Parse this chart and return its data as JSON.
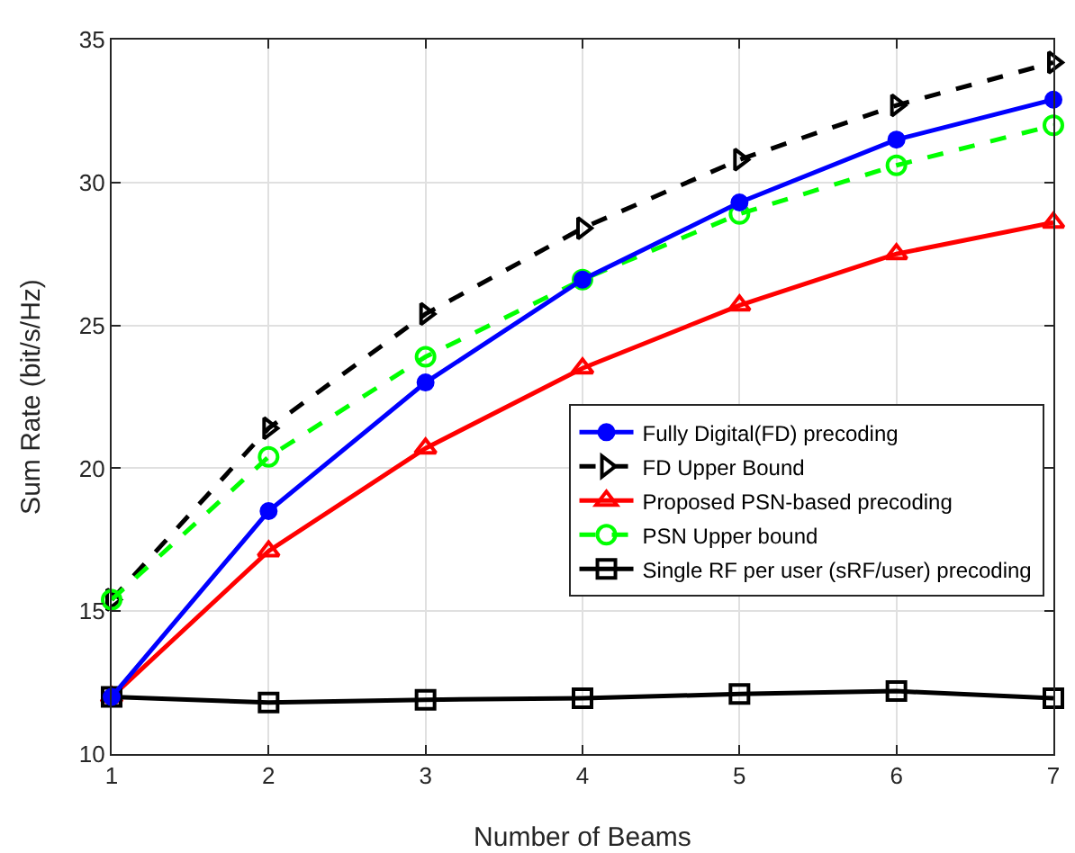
{
  "chart_data": {
    "type": "line",
    "xlabel": "Number of Beams",
    "ylabel": "Sum Rate (bit/s/Hz)",
    "x": [
      1,
      2,
      3,
      4,
      5,
      6,
      7
    ],
    "xlim": [
      1,
      7
    ],
    "xticks": [
      1,
      2,
      3,
      4,
      5,
      6,
      7
    ],
    "ylim": [
      10,
      35
    ],
    "yticks": [
      10,
      15,
      20,
      25,
      30,
      35
    ],
    "grid": true,
    "legend": "bottom right",
    "series": [
      {
        "name": "Fully Digital(FD) precoding",
        "color": "#0000ff",
        "marker": "circle",
        "line_style": "solid",
        "values": [
          12.0,
          18.5,
          23.0,
          26.6,
          29.3,
          31.5,
          32.9
        ]
      },
      {
        "name": "FD Upper Bound",
        "color": "#000000",
        "marker": "triangle",
        "line_style": "dashed",
        "values": [
          15.4,
          21.4,
          25.4,
          28.4,
          30.8,
          32.7,
          34.2
        ]
      },
      {
        "name": "Proposed PSN-based precoding",
        "color": "#ff0000",
        "marker": "triangle",
        "line_style": "solid",
        "values": [
          12.0,
          17.1,
          20.7,
          23.5,
          25.7,
          27.5,
          28.6
        ]
      },
      {
        "name": "PSN Upper bound",
        "color": "#00ff00",
        "marker": "circle",
        "line_style": "dashed",
        "values": [
          15.4,
          20.4,
          23.9,
          26.6,
          28.9,
          30.6,
          32.0
        ]
      },
      {
        "name": "Single RF per user (sRF/user) precoding",
        "color": "#000000",
        "marker": "square",
        "line_style": "solid",
        "values": [
          12.0,
          11.8,
          11.9,
          11.95,
          12.1,
          12.2,
          11.95
        ]
      }
    ]
  }
}
